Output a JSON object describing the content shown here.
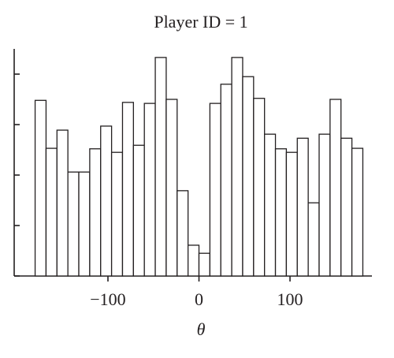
{
  "chart_data": {
    "type": "histogram",
    "title": "Player ID = 1",
    "xlabel": "θ",
    "bins": [
      -180,
      -168,
      -156,
      -144,
      -132,
      -120,
      -108,
      -96,
      -84,
      -72,
      -60,
      -48,
      -36,
      -24,
      -12,
      0,
      12,
      24,
      36,
      48,
      60,
      72,
      84,
      96,
      108,
      120,
      132,
      144,
      156,
      168,
      180
    ],
    "values": [
      3.48,
      2.53,
      2.89,
      2.06,
      2.06,
      2.52,
      2.97,
      2.45,
      3.44,
      2.59,
      3.42,
      4.33,
      3.5,
      1.69,
      0.61,
      0.45,
      3.42,
      3.8,
      4.33,
      3.95,
      3.52,
      2.81,
      2.52,
      2.45,
      2.73,
      1.45,
      2.81,
      3.5,
      2.73,
      2.53
    ],
    "color": "#ffffff",
    "edgecolor": "#231f20",
    "xlim": [
      -203,
      190
    ],
    "xticks": [
      {
        "value": -100,
        "label": "−100"
      },
      0,
      100
    ],
    "ylim": [
      0,
      4.5
    ],
    "yticks": [
      0,
      1,
      2,
      3,
      4
    ]
  }
}
